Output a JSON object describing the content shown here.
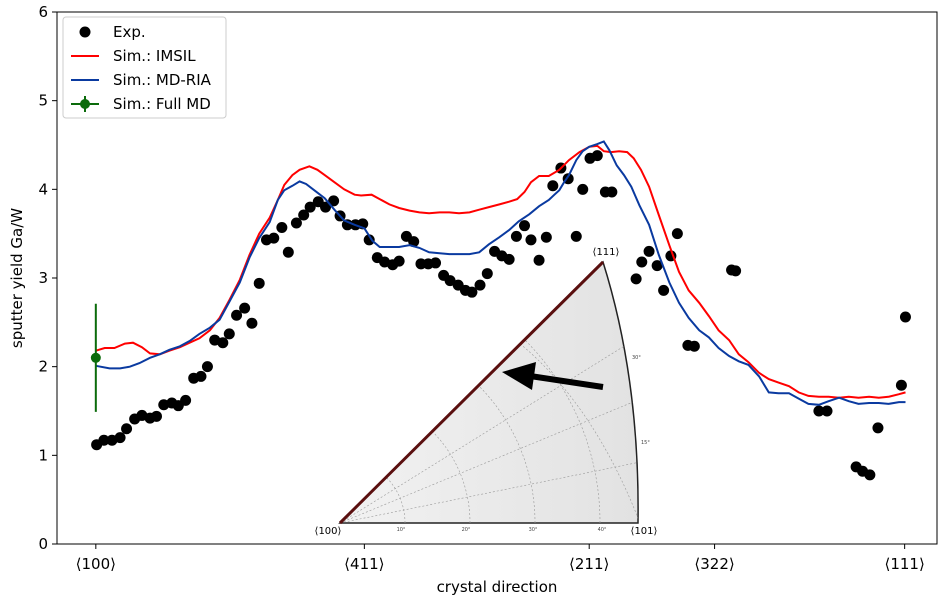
{
  "chart_data": {
    "type": "scatter",
    "xlabel": "crystal direction",
    "ylabel": "sputter yield Ga/W",
    "xlim": [
      -4.8,
      104
    ],
    "ylim": [
      0,
      6
    ],
    "xticks": [
      {
        "value": 0,
        "label": "⟨100⟩"
      },
      {
        "value": 33.2,
        "label": "⟨411⟩"
      },
      {
        "value": 61.0,
        "label": "⟨211⟩"
      },
      {
        "value": 76.5,
        "label": "⟨322⟩"
      },
      {
        "value": 100,
        "label": "⟨111⟩"
      }
    ],
    "yticks": [
      0,
      1,
      2,
      3,
      4,
      5,
      6
    ],
    "legend": "upper left",
    "series": [
      {
        "name": "Exp.",
        "kind": "scatter",
        "color": "#000000",
        "x": [
          0.1,
          1.0,
          2.0,
          3.0,
          3.8,
          4.8,
          5.7,
          6.7,
          7.5,
          8.4,
          9.4,
          10.2,
          11.1,
          12.1,
          13.0,
          13.8,
          14.7,
          15.7,
          16.5,
          17.4,
          18.4,
          19.3,
          20.2,
          21.1,
          22.0,
          23.0,
          23.8,
          24.8,
          25.7,
          26.5,
          27.5,
          28.4,
          29.4,
          30.2,
          31.1,
          32.1,
          33.0,
          33.8,
          34.8,
          35.7,
          36.7,
          37.5,
          38.4,
          39.3,
          40.2,
          41.1,
          42.0,
          43.0,
          43.8,
          44.8,
          45.7,
          46.5,
          47.5,
          48.4,
          49.3,
          50.2,
          51.1,
          52.0,
          53.0,
          53.8,
          54.8,
          55.7,
          56.5,
          57.5,
          58.4,
          59.4,
          60.2,
          61.1,
          62.0,
          63.0,
          63.8,
          66.8,
          67.5,
          68.4,
          69.4,
          70.2,
          71.1,
          71.9,
          73.2,
          74.0,
          78.6,
          79.1,
          89.4,
          90.4,
          94.0,
          94.8,
          95.7,
          96.7,
          99.6,
          100.1
        ],
        "values": [
          1.12,
          1.17,
          1.17,
          1.2,
          1.3,
          1.41,
          1.45,
          1.42,
          1.44,
          1.57,
          1.59,
          1.56,
          1.62,
          1.87,
          1.89,
          2.0,
          2.3,
          2.27,
          2.37,
          2.58,
          2.66,
          2.49,
          2.94,
          3.43,
          3.45,
          3.57,
          3.29,
          3.62,
          3.71,
          3.8,
          3.86,
          3.8,
          3.87,
          3.7,
          3.6,
          3.6,
          3.61,
          3.43,
          3.23,
          3.18,
          3.15,
          3.19,
          3.47,
          3.41,
          3.16,
          3.16,
          3.17,
          3.03,
          2.97,
          2.92,
          2.86,
          2.84,
          2.92,
          3.05,
          3.3,
          3.25,
          3.21,
          3.47,
          3.59,
          3.43,
          3.2,
          3.46,
          4.04,
          4.24,
          4.12,
          3.47,
          4.0,
          4.35,
          4.38,
          3.97,
          3.97,
          2.99,
          3.18,
          3.3,
          3.14,
          2.86,
          3.25,
          3.5,
          2.24,
          2.23,
          3.09,
          3.08,
          1.5,
          1.5,
          0.87,
          0.82,
          0.78,
          1.31,
          1.79,
          2.56
        ]
      },
      {
        "name": "Sim.: IMSIL",
        "kind": "line",
        "color": "#ff0000",
        "x": [
          0,
          1.1,
          2.3,
          3.6,
          4.6,
          5.7,
          6.7,
          7.9,
          9.1,
          10.4,
          11.6,
          12.8,
          14.1,
          15.3,
          16.5,
          17.8,
          19.0,
          20.2,
          21.5,
          22.5,
          23.3,
          24.3,
          25.2,
          26.4,
          27.4,
          28.3,
          29.5,
          30.7,
          32.0,
          32.8,
          34.1,
          35.1,
          36.3,
          37.5,
          38.8,
          40.0,
          41.2,
          42.5,
          43.7,
          44.9,
          46.2,
          47.4,
          48.6,
          49.9,
          51.1,
          52.1,
          53.0,
          53.8,
          54.8,
          56.0,
          57.3,
          58.5,
          59.8,
          61.0,
          62.0,
          62.8,
          63.7,
          64.7,
          65.7,
          66.5,
          67.4,
          68.4,
          69.6,
          70.9,
          72.1,
          73.3,
          74.6,
          75.8,
          77.0,
          78.3,
          79.5,
          80.7,
          82.0,
          83.2,
          84.4,
          85.7,
          86.9,
          88.1,
          89.4,
          90.6,
          91.9,
          93.1,
          94.3,
          95.6,
          96.8,
          98.0,
          99.3,
          100.1
        ],
        "values": [
          2.18,
          2.21,
          2.21,
          2.26,
          2.27,
          2.22,
          2.15,
          2.14,
          2.18,
          2.22,
          2.27,
          2.32,
          2.41,
          2.55,
          2.75,
          2.98,
          3.26,
          3.5,
          3.68,
          3.88,
          4.05,
          4.16,
          4.22,
          4.26,
          4.22,
          4.16,
          4.08,
          4.0,
          3.94,
          3.93,
          3.94,
          3.89,
          3.83,
          3.79,
          3.76,
          3.74,
          3.73,
          3.74,
          3.74,
          3.73,
          3.74,
          3.77,
          3.8,
          3.83,
          3.86,
          3.89,
          3.97,
          4.08,
          4.15,
          4.15,
          4.22,
          4.33,
          4.42,
          4.48,
          4.49,
          4.43,
          4.42,
          4.43,
          4.42,
          4.35,
          4.22,
          4.03,
          3.71,
          3.37,
          3.07,
          2.86,
          2.72,
          2.57,
          2.41,
          2.3,
          2.14,
          2.05,
          1.93,
          1.86,
          1.82,
          1.78,
          1.71,
          1.67,
          1.66,
          1.66,
          1.65,
          1.66,
          1.65,
          1.66,
          1.65,
          1.66,
          1.69,
          1.71
        ]
      },
      {
        "name": "Sim.: MD-RIA",
        "kind": "line",
        "color": "#0a3aa0",
        "x": [
          0,
          1.7,
          3.0,
          4.2,
          5.4,
          6.7,
          7.9,
          9.1,
          10.4,
          11.6,
          12.8,
          14.1,
          15.3,
          16.5,
          17.8,
          19.0,
          20.2,
          21.5,
          22.5,
          23.3,
          24.3,
          25.2,
          26.0,
          27.0,
          28.3,
          29.5,
          30.7,
          32.0,
          33.2,
          34.2,
          35.1,
          36.3,
          37.5,
          38.8,
          40.0,
          41.2,
          42.5,
          43.7,
          44.9,
          46.2,
          47.4,
          48.6,
          49.9,
          51.1,
          52.3,
          53.6,
          54.8,
          56.0,
          56.7,
          57.3,
          57.9,
          58.5,
          59.4,
          60.2,
          61.0,
          62.0,
          62.8,
          63.5,
          64.4,
          65.3,
          66.2,
          67.2,
          68.4,
          69.6,
          70.9,
          72.1,
          73.3,
          74.6,
          75.8,
          77.0,
          78.3,
          79.5,
          80.7,
          82.0,
          83.2,
          84.4,
          85.7,
          86.9,
          88.1,
          89.4,
          90.6,
          91.9,
          93.1,
          94.3,
          95.6,
          96.8,
          98.0,
          99.3,
          100.1
        ],
        "values": [
          2.01,
          1.98,
          1.98,
          2.0,
          2.04,
          2.1,
          2.14,
          2.19,
          2.23,
          2.29,
          2.37,
          2.44,
          2.53,
          2.73,
          2.95,
          3.23,
          3.45,
          3.63,
          3.88,
          3.99,
          4.04,
          4.09,
          4.06,
          3.99,
          3.9,
          3.77,
          3.65,
          3.6,
          3.56,
          3.42,
          3.35,
          3.35,
          3.35,
          3.37,
          3.34,
          3.29,
          3.28,
          3.27,
          3.27,
          3.27,
          3.29,
          3.38,
          3.46,
          3.54,
          3.64,
          3.72,
          3.81,
          3.88,
          3.94,
          3.99,
          4.08,
          4.16,
          4.33,
          4.43,
          4.48,
          4.51,
          4.54,
          4.44,
          4.27,
          4.16,
          4.03,
          3.82,
          3.6,
          3.26,
          2.95,
          2.72,
          2.55,
          2.41,
          2.33,
          2.21,
          2.12,
          2.06,
          2.02,
          1.89,
          1.71,
          1.7,
          1.7,
          1.64,
          1.58,
          1.57,
          1.61,
          1.65,
          1.61,
          1.58,
          1.59,
          1.59,
          1.58,
          1.6,
          1.6
        ]
      },
      {
        "name": "Sim.: Full MD",
        "kind": "errorbar",
        "color": "#0b6b0b",
        "x": [
          0
        ],
        "values": [
          2.1
        ],
        "errors": [
          0.61
        ]
      }
    ],
    "inset": {
      "corner_labels": [
        "⟨100⟩",
        "⟨111⟩",
        "⟨101⟩"
      ],
      "bottom_angle_labels": [
        "10°",
        "20°",
        "30°",
        "40°"
      ],
      "arc_angle_labels": [
        "30°",
        "15°"
      ]
    }
  }
}
